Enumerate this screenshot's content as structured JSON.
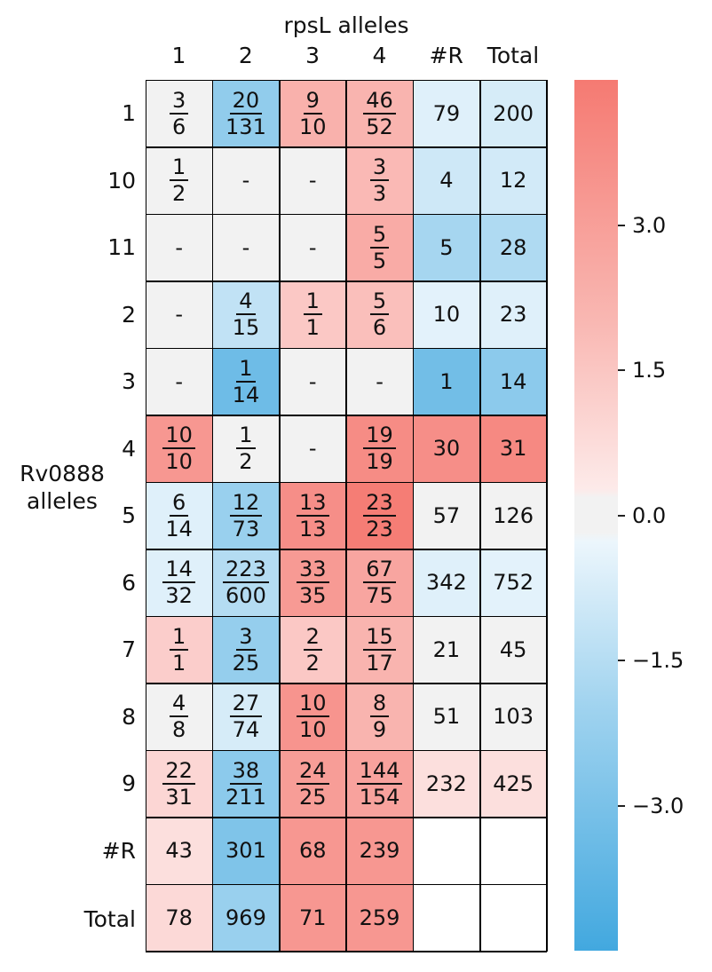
{
  "chart_data": {
    "type": "heatmap",
    "title": "rpsL alleles",
    "ylabel": "Rv0888\nalleles",
    "columns": [
      "1",
      "2",
      "3",
      "4",
      "#R",
      "Total"
    ],
    "rows": [
      "1",
      "10",
      "11",
      "2",
      "3",
      "4",
      "5",
      "6",
      "7",
      "8",
      "9",
      "#R",
      "Total"
    ],
    "cells": [
      [
        {
          "t": "3/6",
          "v": 0.0
        },
        {
          "t": "20/131",
          "v": -2.1
        },
        {
          "t": "9/10",
          "v": 2.0
        },
        {
          "t": "46/52",
          "v": 1.9
        },
        {
          "t": "79",
          "v": -0.3
        },
        {
          "t": "200",
          "v": -0.5
        }
      ],
      [
        {
          "t": "1/2",
          "v": 0.0
        },
        {
          "t": "-",
          "v": 0.0
        },
        {
          "t": "-",
          "v": 0.0
        },
        {
          "t": "3/3",
          "v": 1.7
        },
        {
          "t": "4",
          "v": -0.7
        },
        {
          "t": "12",
          "v": -0.6
        }
      ],
      [
        {
          "t": "-",
          "v": 0.0
        },
        {
          "t": "-",
          "v": 0.0
        },
        {
          "t": "-",
          "v": 0.0
        },
        {
          "t": "5/5",
          "v": 2.2
        },
        {
          "t": "5",
          "v": -1.6
        },
        {
          "t": "28",
          "v": -1.4
        }
      ],
      [
        {
          "t": "-",
          "v": 0.0
        },
        {
          "t": "4/15",
          "v": -1.0
        },
        {
          "t": "1/1",
          "v": 1.2
        },
        {
          "t": "5/6",
          "v": 1.5
        },
        {
          "t": "10",
          "v": -0.2
        },
        {
          "t": "23",
          "v": -0.3
        }
      ],
      [
        {
          "t": "-",
          "v": 0.0
        },
        {
          "t": "1/14",
          "v": -2.9
        },
        {
          "t": "-",
          "v": 0.0
        },
        {
          "t": "-",
          "v": 0.0
        },
        {
          "t": "1",
          "v": -2.8
        },
        {
          "t": "14",
          "v": -2.2
        }
      ],
      [
        {
          "t": "10/10",
          "v": 2.9
        },
        {
          "t": "1/2",
          "v": 0.0
        },
        {
          "t": "-",
          "v": 0.0
        },
        {
          "t": "19/19",
          "v": 3.3
        },
        {
          "t": "30",
          "v": 3.2
        },
        {
          "t": "31",
          "v": 3.4
        }
      ],
      [
        {
          "t": "6/14",
          "v": -0.3
        },
        {
          "t": "12/73",
          "v": -1.9
        },
        {
          "t": "13/13",
          "v": 3.2
        },
        {
          "t": "23/23",
          "v": 3.8
        },
        {
          "t": "57",
          "v": 0.0
        },
        {
          "t": "126",
          "v": 0.0
        }
      ],
      [
        {
          "t": "14/32",
          "v": -0.3
        },
        {
          "t": "223/600",
          "v": -1.3
        },
        {
          "t": "33/35",
          "v": 2.8
        },
        {
          "t": "67/75",
          "v": 2.4
        },
        {
          "t": "342",
          "v": -0.3
        },
        {
          "t": "752",
          "v": -0.2
        }
      ],
      [
        {
          "t": "1/1",
          "v": 1.0
        },
        {
          "t": "3/25",
          "v": -2.0
        },
        {
          "t": "2/2",
          "v": 1.2
        },
        {
          "t": "15/17",
          "v": 1.9
        },
        {
          "t": "21",
          "v": 0.0
        },
        {
          "t": "45",
          "v": 0.0
        }
      ],
      [
        {
          "t": "4/8",
          "v": 0.0
        },
        {
          "t": "27/74",
          "v": -0.5
        },
        {
          "t": "10/10",
          "v": 3.0
        },
        {
          "t": "8/9",
          "v": 1.9
        },
        {
          "t": "51",
          "v": 0.0
        },
        {
          "t": "103",
          "v": 0.0
        }
      ],
      [
        {
          "t": "22/31",
          "v": 0.7
        },
        {
          "t": "38/211",
          "v": -2.2
        },
        {
          "t": "24/25",
          "v": 2.7
        },
        {
          "t": "144/154",
          "v": 2.5
        },
        {
          "t": "232",
          "v": 0.4
        },
        {
          "t": "425",
          "v": 0.4
        }
      ],
      [
        {
          "t": "43",
          "v": 0.4
        },
        {
          "t": "301",
          "v": -2.5
        },
        {
          "t": "68",
          "v": 2.9
        },
        {
          "t": "239",
          "v": 2.9
        },
        {
          "t": "",
          "v": null
        },
        {
          "t": "",
          "v": null
        }
      ],
      [
        {
          "t": "78",
          "v": 0.6
        },
        {
          "t": "969",
          "v": -1.9
        },
        {
          "t": "71",
          "v": 2.9
        },
        {
          "t": "259",
          "v": 2.9
        },
        {
          "t": "",
          "v": null
        },
        {
          "t": "",
          "v": null
        }
      ]
    ],
    "colorbar": {
      "vmin": -4.5,
      "vmax": 4.5,
      "ticks": [
        {
          "v": 3.0,
          "label": "3.0"
        },
        {
          "v": 1.5,
          "label": "1.5"
        },
        {
          "v": 0.0,
          "label": "0.0"
        },
        {
          "v": -1.5,
          "label": "−1.5"
        },
        {
          "v": -3.0,
          "label": "−3.0"
        }
      ],
      "neg_color": "#42a8df",
      "center_color": "#f2f2f2",
      "pos_color": "#f57a72"
    }
  }
}
